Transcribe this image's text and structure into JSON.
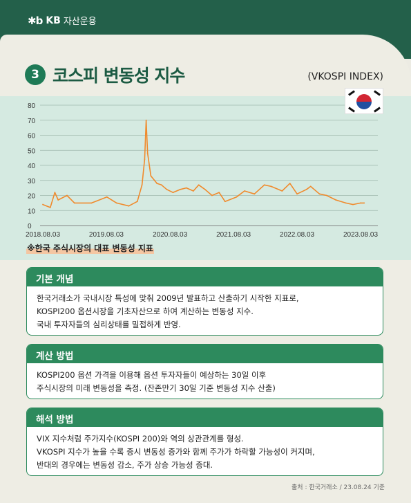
{
  "header": {
    "brand_mark": "✱b",
    "brand_name": "KB",
    "brand_sub": "자산운용"
  },
  "title": {
    "number": "3",
    "text": "코스피 변동성 지수",
    "subtitle": "(VKOSPI INDEX)"
  },
  "note": "※한국 주식시장의 대표 변동성 지표",
  "sections": [
    {
      "heading": "기본 개념",
      "lines": [
        "한국거래소가 국내시장 특성에 맞춰 2009년 발표하고 산출하기 시작한 지표로,",
        "KOSPI200 옵션시장을 기초자산으로 하여 계산하는 변동성 지수.",
        "국내 투자자들의 심리상태를 밀접하게 반영."
      ]
    },
    {
      "heading": "계산 방법",
      "lines": [
        "KOSPI200 옵션 가격을 이용해 옵션 투자자들이 예상하는 30일 이후",
        "주식시장의 미래 변동성을 측정. (잔존만기 30일 기준 변동성 지수 산출)"
      ]
    },
    {
      "heading": "해석 방법",
      "lines": [
        "VIX 지수처럼 주가지수(KOSPI 200)와 역의 상관관계를 형성.",
        "VKOSPI 지수가 높을 수록 증시 변동성 증가와 함께 주가가 하락할 가능성이 커지며,",
        "반대의 경우에는 변동성 감소, 주가 상승 가능성 증대."
      ]
    }
  ],
  "source": "출처 : 한국거래소 / 23.08.24 기준",
  "colors": {
    "brand_green": "#23604a",
    "line": "#f08a2c",
    "chart_bg": "#d5eae1"
  },
  "icons": {
    "flag": "korea-flag-icon"
  },
  "chart_data": {
    "type": "line",
    "title": "",
    "xlabel": "",
    "ylabel": "",
    "ylim": [
      0,
      80
    ],
    "yticks": [
      "0",
      "10",
      "20",
      "30",
      "40",
      "50",
      "60",
      "70",
      "80"
    ],
    "xticks": [
      "2018.08.03",
      "2019.08.03",
      "2020.08.03",
      "2021.08.03",
      "2022.08.03",
      "2023.08.03"
    ],
    "grid": true,
    "series": [
      {
        "name": "",
        "x": [
          "2018.08.03",
          "2018.09.15",
          "2018.10.11",
          "2018.10.30",
          "2018.12.20",
          "2019.02.01",
          "2019.05.10",
          "2019.08.06",
          "2019.10.01",
          "2019.12.10",
          "2020.01.28",
          "2020.02.24",
          "2020.03.10",
          "2020.03.19",
          "2020.03.27",
          "2020.04.15",
          "2020.05.20",
          "2020.06.15",
          "2020.07.15",
          "2020.08.20",
          "2020.10.01",
          "2020.11.05",
          "2020.12.15",
          "2021.01.15",
          "2021.02.20",
          "2021.04.01",
          "2021.05.12",
          "2021.06.15",
          "2021.08.20",
          "2021.10.05",
          "2021.12.01",
          "2022.01.27",
          "2022.03.07",
          "2022.05.09",
          "2022.06.23",
          "2022.08.03",
          "2022.09.26",
          "2022.10.20",
          "2022.12.10",
          "2023.01.20",
          "2023.03.14",
          "2023.05.10",
          "2023.06.20",
          "2023.08.03",
          "2023.08.24"
        ],
        "values": [
          14,
          12,
          22,
          17,
          20,
          15,
          15,
          19,
          15,
          13,
          16,
          27,
          44,
          70,
          48,
          33,
          28,
          27,
          24,
          22,
          24,
          25,
          23,
          27,
          24,
          20,
          22,
          16,
          19,
          23,
          21,
          27,
          26,
          23,
          28,
          21,
          24,
          26,
          21,
          20,
          17,
          15,
          14,
          15,
          15
        ]
      }
    ]
  }
}
